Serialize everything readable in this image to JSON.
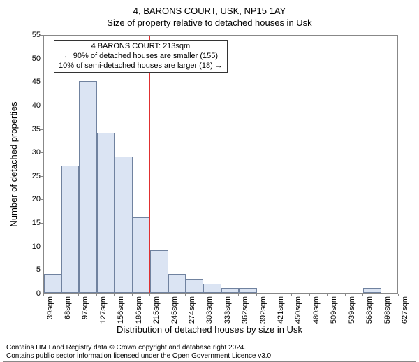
{
  "title_main": "4, BARONS COURT, USK, NP15 1AY",
  "title_sub": "Size of property relative to detached houses in Usk",
  "y_axis_label": "Number of detached properties",
  "x_axis_label": "Distribution of detached houses by size in Usk",
  "chart": {
    "type": "histogram",
    "ylim": [
      0,
      55
    ],
    "ytick_step": 5,
    "background_color": "#ffffff",
    "grid_color": "#888888",
    "bar_fill": "#dbe4f3",
    "bar_border": "#70829f",
    "vline_color": "#e03030",
    "vline_x": 213,
    "x_categories": [
      "39sqm",
      "68sqm",
      "97sqm",
      "127sqm",
      "156sqm",
      "186sqm",
      "215sqm",
      "245sqm",
      "274sqm",
      "303sqm",
      "333sqm",
      "362sqm",
      "392sqm",
      "421sqm",
      "450sqm",
      "480sqm",
      "509sqm",
      "539sqm",
      "568sqm",
      "598sqm",
      "627sqm"
    ],
    "x_numeric": [
      39,
      68,
      97,
      127,
      156,
      186,
      215,
      245,
      274,
      303,
      333,
      362,
      392,
      421,
      450,
      480,
      509,
      539,
      568,
      598,
      627
    ],
    "x_range": [
      39,
      627
    ],
    "bars": [
      {
        "x0": 39,
        "x1": 68,
        "y": 4
      },
      {
        "x0": 68,
        "x1": 97,
        "y": 27
      },
      {
        "x0": 97,
        "x1": 127,
        "y": 45
      },
      {
        "x0": 127,
        "x1": 156,
        "y": 34
      },
      {
        "x0": 156,
        "x1": 186,
        "y": 29
      },
      {
        "x0": 186,
        "x1": 215,
        "y": 16
      },
      {
        "x0": 215,
        "x1": 245,
        "y": 9
      },
      {
        "x0": 245,
        "x1": 274,
        "y": 4
      },
      {
        "x0": 274,
        "x1": 303,
        "y": 3
      },
      {
        "x0": 303,
        "x1": 333,
        "y": 2
      },
      {
        "x0": 333,
        "x1": 362,
        "y": 1
      },
      {
        "x0": 362,
        "x1": 392,
        "y": 1
      },
      {
        "x0": 568,
        "x1": 598,
        "y": 1
      }
    ]
  },
  "annotation": {
    "line1": "4 BARONS COURT: 213sqm",
    "line2": "← 90% of detached houses are smaller (155)",
    "line3": "10% of semi-detached houses are larger (18) →"
  },
  "footer": {
    "line1": "Contains HM Land Registry data © Crown copyright and database right 2024.",
    "line2": "Contains public sector information licensed under the Open Government Licence v3.0."
  }
}
